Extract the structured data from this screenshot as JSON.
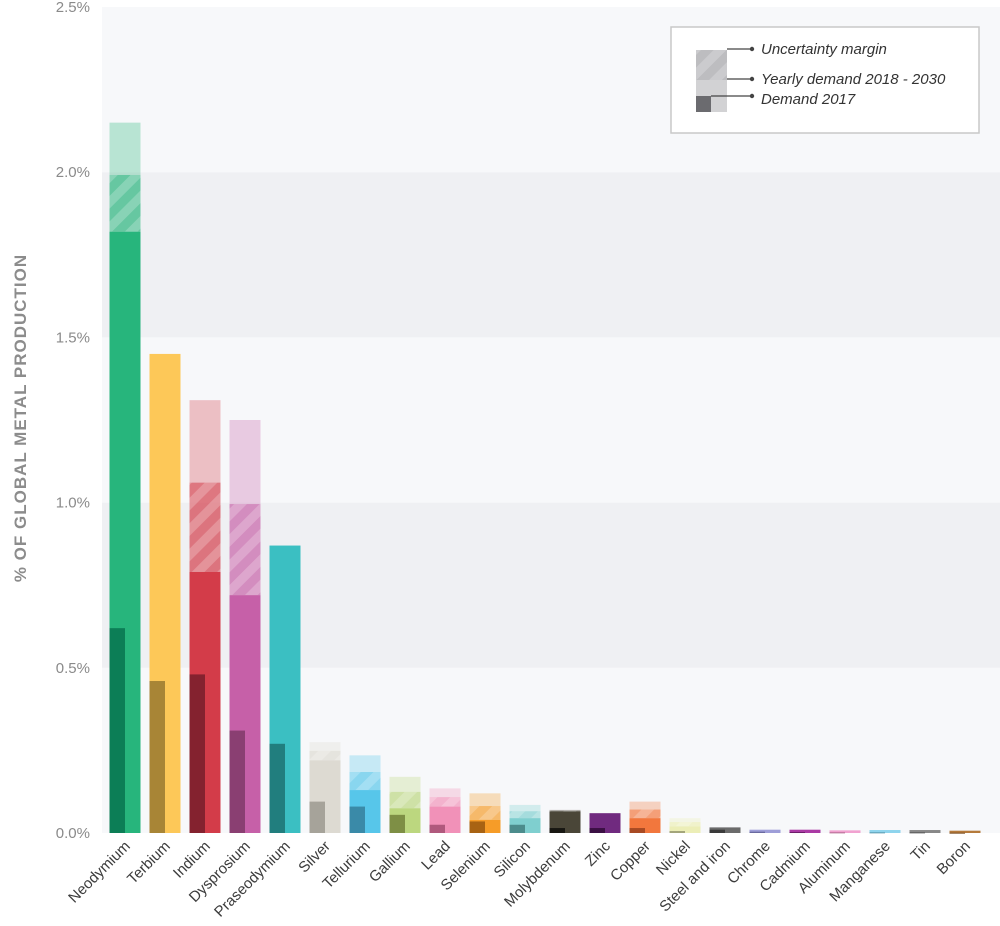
{
  "chart_data": {
    "type": "bar",
    "ylabel": "% OF GLOBAL METAL PRODUCTION",
    "xlabel": "",
    "ylim": [
      0,
      2.5
    ],
    "ytick_labels": [
      "0.0%",
      "0.5%",
      "1.0%",
      "1.5%",
      "2.0%",
      "2.5%"
    ],
    "ytick_values": [
      0,
      0.5,
      1.0,
      1.5,
      2.0,
      2.5
    ],
    "grid": "alternating horizontal bands",
    "legend_position": "top-right",
    "legend": [
      {
        "key": "uncertainty",
        "label": "Uncertainty margin"
      },
      {
        "key": "yearly",
        "label": "Yearly demand 2018 - 2030"
      },
      {
        "key": "d2017",
        "label": "Demand 2017"
      }
    ],
    "categories": [
      "Neodymium",
      "Terbium",
      "Indium",
      "Dysprosium",
      "Praseodymium",
      "Silver",
      "Tellurium",
      "Gallium",
      "Lead",
      "Selenium",
      "Silicon",
      "Molybdenum",
      "Zinc",
      "Copper",
      "Nickel",
      "Steel and iron",
      "Chrome",
      "Cadmium",
      "Aluminum",
      "Manganese",
      "Tin",
      "Boron"
    ],
    "series": [
      {
        "name": "Demand 2017",
        "values": [
          0.62,
          0.46,
          0.48,
          0.31,
          0.27,
          0.095,
          0.08,
          0.055,
          0.025,
          0.035,
          0.025,
          0.015,
          0.015,
          0.015,
          0.006,
          0.01,
          0.004,
          0.003,
          0.002,
          0.002,
          0.002,
          0.001
        ]
      },
      {
        "name": "Yearly demand 2018 - 2030",
        "values": [
          1.82,
          1.45,
          0.79,
          0.72,
          0.87,
          0.22,
          0.13,
          0.075,
          0.08,
          0.04,
          0.045,
          0.065,
          0.06,
          0.045,
          0.02,
          0.017,
          0.01,
          0.01,
          0.008,
          0.009,
          0.009,
          0.007
        ]
      },
      {
        "name": "Uncertainty margin",
        "values": [
          [
            1.82,
            2.15
          ],
          null,
          [
            0.79,
            1.31
          ],
          [
            0.72,
            1.25
          ],
          null,
          [
            0.22,
            0.275
          ],
          [
            0.13,
            0.235
          ],
          [
            0.075,
            0.17
          ],
          [
            0.08,
            0.135
          ],
          [
            0.04,
            0.12
          ],
          [
            0.045,
            0.085
          ],
          [
            0.065,
            0.07
          ],
          null,
          [
            0.045,
            0.095
          ],
          [
            0.02,
            0.045
          ],
          null,
          null,
          null,
          null,
          null,
          null,
          null
        ]
      }
    ],
    "colors": [
      "#27b57c",
      "#fdc858",
      "#d33c49",
      "#c660a8",
      "#3bbfc2",
      "#dddad2",
      "#57c6ea",
      "#bcd77f",
      "#f191b8",
      "#f69c28",
      "#7fcfcf",
      "#4a4638",
      "#702a7f",
      "#f2773d",
      "#eceeb7",
      "#6b6b6b",
      "#9e9ed8",
      "#aa3aa4",
      "#f1a2d0",
      "#8ed4ed",
      "#888888",
      "#b57a3b"
    ],
    "dark_colors": [
      "#0c7e56",
      "#a88536",
      "#84222f",
      "#8a3f72",
      "#217e7e",
      "#a6a39a",
      "#3a8aa8",
      "#7e8f45",
      "#b0597d",
      "#a86313",
      "#4c8c8c",
      "#181712",
      "#3b1044",
      "#a84a23",
      "#a3a57a",
      "#3a3a3a",
      "#6a6aa0",
      "#6e1e6a",
      "#b0698f",
      "#5898ad",
      "#555555",
      "#7a4e22"
    ]
  }
}
